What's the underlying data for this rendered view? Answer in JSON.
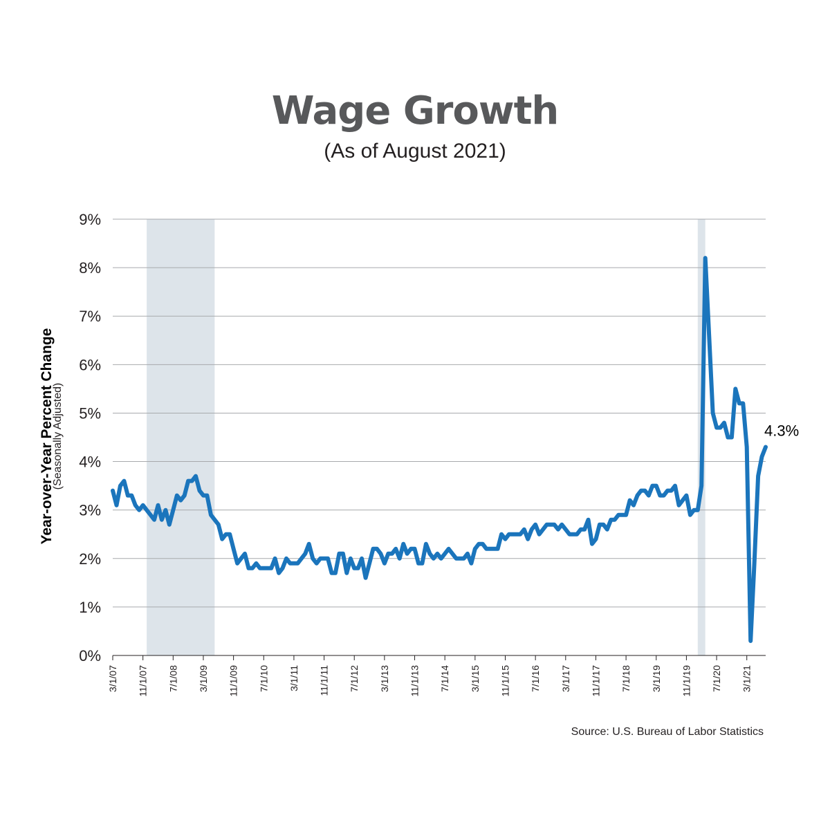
{
  "chart_data": {
    "type": "line",
    "title": "Wage Growth",
    "subtitle": "(As of August 2021)",
    "ylabel": "Year-over-Year Percent Change",
    "ylabel_note": "(Seasonally Adjusted)",
    "source": "Source: U.S. Bureau of Labor Statistics",
    "ylim": [
      0,
      9
    ],
    "y_ticks": [
      0,
      1,
      2,
      3,
      4,
      5,
      6,
      7,
      8,
      9
    ],
    "y_tick_labels": [
      "0%",
      "1%",
      "2%",
      "3%",
      "4%",
      "5%",
      "6%",
      "7%",
      "8%",
      "9%"
    ],
    "x_range": [
      "2007-03",
      "2021-08"
    ],
    "x_ticks": [
      "2007-03",
      "2007-11",
      "2008-07",
      "2009-03",
      "2009-11",
      "2010-07",
      "2011-03",
      "2011-11",
      "2012-07",
      "2013-03",
      "2013-11",
      "2014-07",
      "2015-03",
      "2015-11",
      "2016-07",
      "2017-03",
      "2017-11",
      "2018-07",
      "2019-03",
      "2019-11",
      "2020-07",
      "2021-03"
    ],
    "x_tick_labels": [
      "3/1/07",
      "11/1/07",
      "7/1/08",
      "3/1/09",
      "11/1/09",
      "7/1/10",
      "3/1/11",
      "11/1/11",
      "7/1/12",
      "3/1/13",
      "11/1/13",
      "7/1/14",
      "3/1/15",
      "11/1/15",
      "7/1/16",
      "3/1/17",
      "11/1/17",
      "7/1/18",
      "3/1/19",
      "11/1/19",
      "7/1/20",
      "3/1/21"
    ],
    "grid": true,
    "recession_shading": [
      {
        "start": "2007-12",
        "end": "2009-06"
      },
      {
        "start": "2020-02",
        "end": "2020-04"
      }
    ],
    "end_label": "4.3%",
    "colors": {
      "line": "#1b75bc",
      "shade": "#dde4ea",
      "grid": "#a7a9ac",
      "title": "#58595b"
    },
    "series": [
      {
        "start": "2007-03",
        "frequency": "monthly",
        "values": [
          3.4,
          3.1,
          3.5,
          3.6,
          3.3,
          3.3,
          3.1,
          3.0,
          3.1,
          3.0,
          2.9,
          2.8,
          3.1,
          2.8,
          3.0,
          2.7,
          3.0,
          3.3,
          3.2,
          3.3,
          3.6,
          3.6,
          3.7,
          3.4,
          3.3,
          3.3,
          2.9,
          2.8,
          2.7,
          2.4,
          2.5,
          2.5,
          2.2,
          1.9,
          2.0,
          2.1,
          1.8,
          1.8,
          1.9,
          1.8,
          1.8,
          1.8,
          1.8,
          2.0,
          1.7,
          1.8,
          2.0,
          1.9,
          1.9,
          1.9,
          2.0,
          2.1,
          2.3,
          2.0,
          1.9,
          2.0,
          2.0,
          2.0,
          1.7,
          1.7,
          2.1,
          2.1,
          1.7,
          2.0,
          1.8,
          1.8,
          2.0,
          1.6,
          1.9,
          2.2,
          2.2,
          2.1,
          1.9,
          2.1,
          2.1,
          2.2,
          2.0,
          2.3,
          2.1,
          2.2,
          2.2,
          1.9,
          1.9,
          2.3,
          2.1,
          2.0,
          2.1,
          2.0,
          2.1,
          2.2,
          2.1,
          2.0,
          2.0,
          2.0,
          2.1,
          1.9,
          2.2,
          2.3,
          2.3,
          2.2,
          2.2,
          2.2,
          2.2,
          2.5,
          2.4,
          2.5,
          2.5,
          2.5,
          2.5,
          2.6,
          2.4,
          2.6,
          2.7,
          2.5,
          2.6,
          2.7,
          2.7,
          2.7,
          2.6,
          2.7,
          2.6,
          2.5,
          2.5,
          2.5,
          2.6,
          2.6,
          2.8,
          2.3,
          2.4,
          2.7,
          2.7,
          2.6,
          2.8,
          2.8,
          2.9,
          2.9,
          2.9,
          3.2,
          3.1,
          3.3,
          3.4,
          3.4,
          3.3,
          3.5,
          3.5,
          3.3,
          3.3,
          3.4,
          3.4,
          3.5,
          3.1,
          3.2,
          3.3,
          2.9,
          3.0,
          3.0,
          3.5,
          8.2,
          6.6,
          5.0,
          4.7,
          4.7,
          4.8,
          4.5,
          4.5,
          5.5,
          5.2,
          5.2,
          4.3,
          0.3,
          1.9,
          3.7,
          4.1,
          4.3
        ]
      }
    ]
  }
}
